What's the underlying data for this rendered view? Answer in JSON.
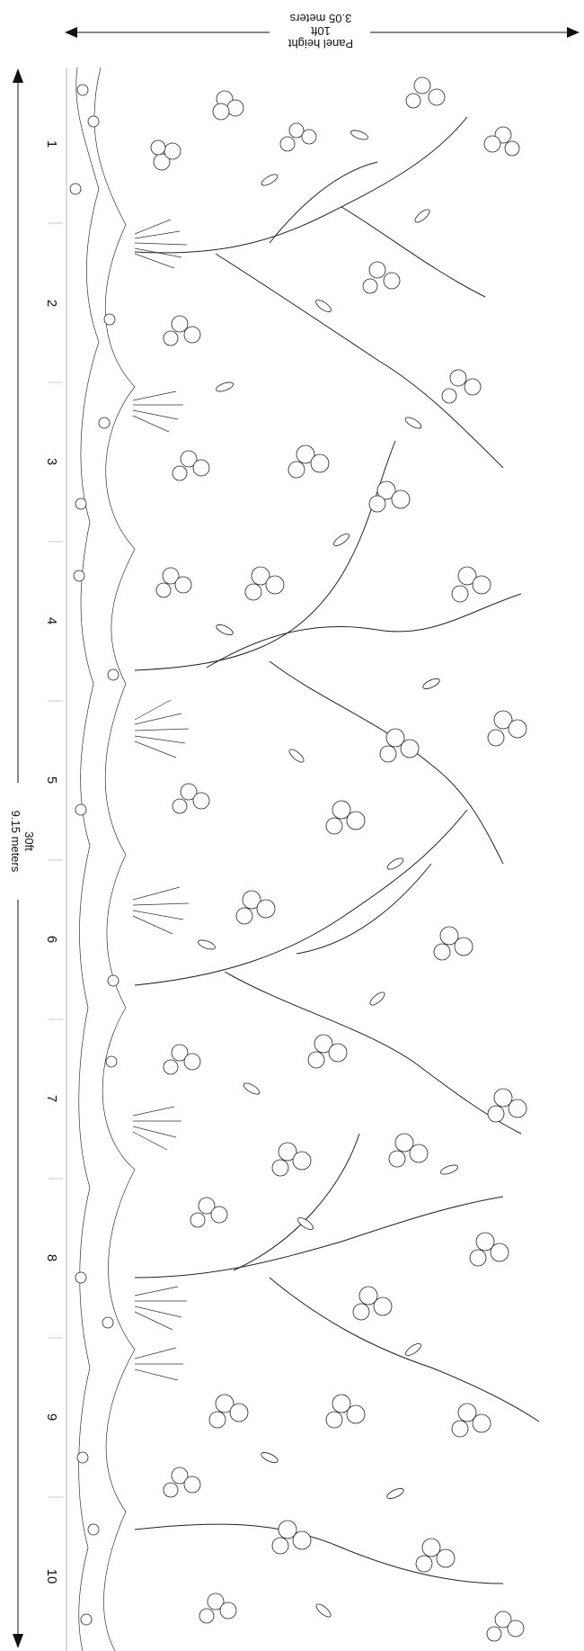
{
  "panel_height": {
    "label": "Panel height",
    "imperial": "10ft",
    "metric": "3.05 meters"
  },
  "total_width": {
    "imperial": "30ft",
    "metric": "9.15 meters"
  },
  "panels": [
    "1",
    "2",
    "3",
    "4",
    "5",
    "6",
    "7",
    "8",
    "9",
    "10"
  ]
}
